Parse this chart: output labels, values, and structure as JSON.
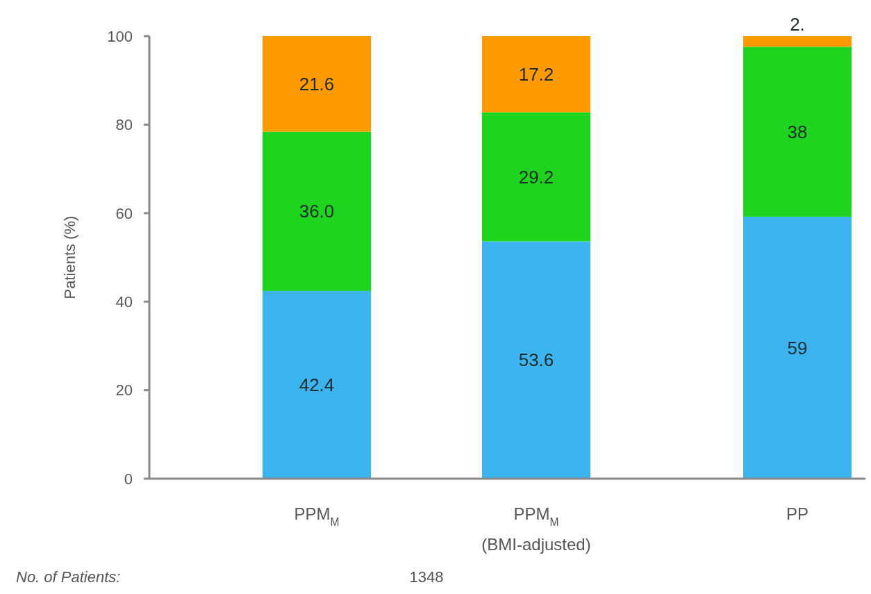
{
  "chart_data": {
    "type": "bar",
    "stacked": true,
    "ylabel": "Patients (%)",
    "categories": [
      "PPM$_{M}$",
      "PPM$_{M}$\n(BMI-adjusted)",
      "PP"
    ],
    "series": [
      {
        "color": "#3bb4f0",
        "values": [
          42.4,
          53.6,
          59.2
        ],
        "value_labels": [
          "42.4",
          "53.6",
          "59"
        ]
      },
      {
        "color": "#1fd41f",
        "values": [
          36.0,
          29.2,
          38.4
        ],
        "value_labels": [
          "36.0",
          "29.2",
          "38"
        ]
      },
      {
        "color": "#ff9a00",
        "values": [
          21.6,
          17.2,
          2.4
        ],
        "value_labels": [
          "21.6",
          "17.2",
          "2."
        ]
      }
    ],
    "ylim": [
      0,
      100
    ],
    "yticks": [
      0,
      20,
      40,
      60,
      80,
      100
    ],
    "annotations": [
      "No. of Patients:",
      "1348"
    ]
  }
}
